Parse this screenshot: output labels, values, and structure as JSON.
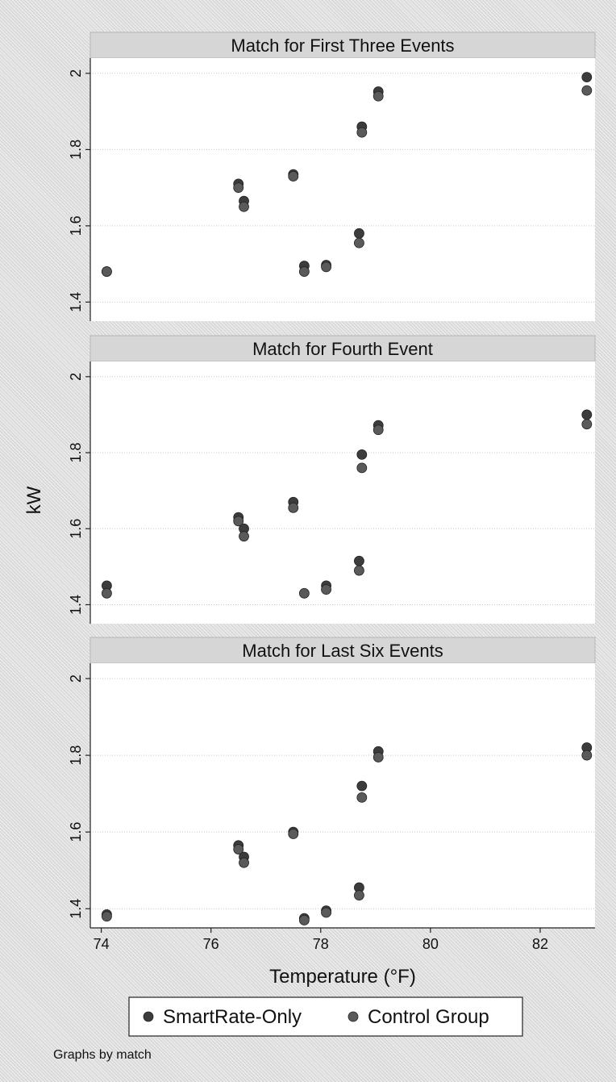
{
  "chart_data": {
    "type": "scatter",
    "byline": "Graphs by match",
    "xlabel": "Temperature (°F)",
    "ylabel": "kW",
    "xlim": [
      73.8,
      83.0
    ],
    "ylim": [
      1.35,
      2.04
    ],
    "xticks": [
      74,
      76,
      78,
      80,
      82
    ],
    "yticks": [
      1.4,
      1.6,
      1.8,
      2.0
    ],
    "ytick_labels": [
      "1.4",
      "1.6",
      "1.8",
      "2"
    ],
    "legend": {
      "position": "bottom",
      "entries": [
        {
          "label": "SmartRate-Only",
          "color": "#3c3c3c"
        },
        {
          "label": "Control Group",
          "color": "#5a5a5a"
        }
      ]
    },
    "panels": [
      {
        "title": "Match for First Three Events",
        "series": [
          {
            "name": "SmartRate-Only",
            "color": "#3c3c3c",
            "points": [
              [
                74.1,
                1.48
              ],
              [
                76.5,
                1.71
              ],
              [
                76.6,
                1.665
              ],
              [
                77.5,
                1.735
              ],
              [
                77.7,
                1.495
              ],
              [
                78.1,
                1.497
              ],
              [
                78.7,
                1.58
              ],
              [
                78.75,
                1.86
              ],
              [
                79.05,
                1.952
              ],
              [
                82.85,
                1.99
              ]
            ]
          },
          {
            "name": "Control Group",
            "color": "#5a5a5a",
            "points": [
              [
                74.1,
                1.48
              ],
              [
                76.5,
                1.7
              ],
              [
                76.6,
                1.65
              ],
              [
                77.5,
                1.73
              ],
              [
                77.7,
                1.48
              ],
              [
                78.1,
                1.492
              ],
              [
                78.7,
                1.555
              ],
              [
                78.75,
                1.845
              ],
              [
                79.05,
                1.94
              ],
              [
                82.85,
                1.955
              ]
            ]
          }
        ]
      },
      {
        "title": "Match for Fourth Event",
        "series": [
          {
            "name": "SmartRate-Only",
            "color": "#3c3c3c",
            "points": [
              [
                74.1,
                1.45
              ],
              [
                76.5,
                1.63
              ],
              [
                76.6,
                1.6
              ],
              [
                77.5,
                1.67
              ],
              [
                78.1,
                1.45
              ],
              [
                78.7,
                1.515
              ],
              [
                78.75,
                1.795
              ],
              [
                79.05,
                1.872
              ],
              [
                82.85,
                1.9
              ]
            ]
          },
          {
            "name": "Control Group",
            "color": "#5a5a5a",
            "points": [
              [
                74.1,
                1.43
              ],
              [
                76.5,
                1.62
              ],
              [
                76.6,
                1.58
              ],
              [
                77.5,
                1.655
              ],
              [
                77.7,
                1.43
              ],
              [
                78.1,
                1.44
              ],
              [
                78.7,
                1.49
              ],
              [
                78.75,
                1.76
              ],
              [
                79.05,
                1.86
              ],
              [
                82.85,
                1.875
              ]
            ]
          }
        ]
      },
      {
        "title": "Match for Last Six Events",
        "series": [
          {
            "name": "SmartRate-Only",
            "color": "#3c3c3c",
            "points": [
              [
                74.1,
                1.385
              ],
              [
                76.5,
                1.565
              ],
              [
                76.6,
                1.535
              ],
              [
                77.5,
                1.6
              ],
              [
                77.7,
                1.375
              ],
              [
                78.1,
                1.395
              ],
              [
                78.7,
                1.455
              ],
              [
                78.75,
                1.72
              ],
              [
                79.05,
                1.81
              ],
              [
                82.85,
                1.82
              ]
            ]
          },
          {
            "name": "Control Group",
            "color": "#5a5a5a",
            "points": [
              [
                74.1,
                1.38
              ],
              [
                76.5,
                1.555
              ],
              [
                76.6,
                1.52
              ],
              [
                77.5,
                1.595
              ],
              [
                77.7,
                1.37
              ],
              [
                78.1,
                1.39
              ],
              [
                78.7,
                1.435
              ],
              [
                78.75,
                1.69
              ],
              [
                79.05,
                1.795
              ],
              [
                82.85,
                1.8
              ]
            ]
          }
        ]
      }
    ]
  }
}
